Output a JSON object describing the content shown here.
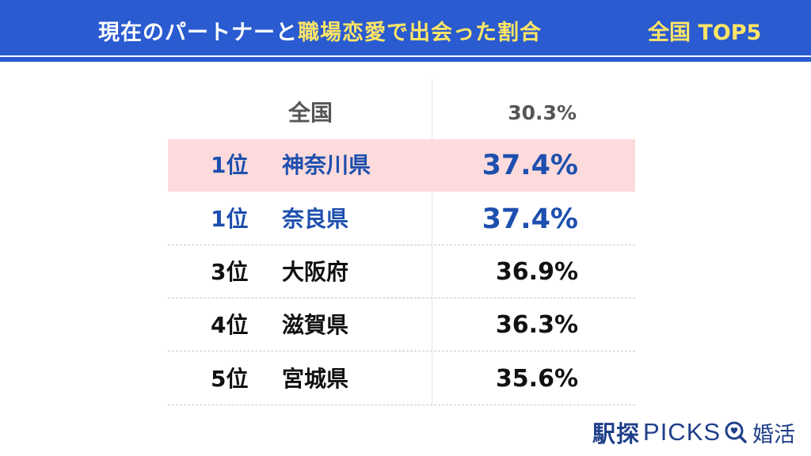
{
  "header": {
    "title_part1": "現在のパートナーと",
    "title_highlight": "職場恋愛で出会った割合",
    "badge": "全国 TOP5"
  },
  "table": {
    "national": {
      "label": "全国",
      "value": "30.3%"
    },
    "rows": [
      {
        "rank": "1位",
        "prefecture": "神奈川県",
        "value": "37.4%"
      },
      {
        "rank": "1位",
        "prefecture": "奈良県",
        "value": "37.4%"
      },
      {
        "rank": "3位",
        "prefecture": "大阪府",
        "value": "36.9%"
      },
      {
        "rank": "4位",
        "prefecture": "滋賀県",
        "value": "36.3%"
      },
      {
        "rank": "5位",
        "prefecture": "宮城県",
        "value": "35.6%"
      }
    ]
  },
  "logo": {
    "brand": "駅探",
    "picks": "PICKS",
    "suffix": "婚活",
    "icon": "magnifier-heart-icon"
  },
  "colors": {
    "header": "#2a5bd0",
    "highlight_text": "#ffe566",
    "rank_blue": "#1d4fae",
    "highlight_row": "#fddbdc"
  }
}
